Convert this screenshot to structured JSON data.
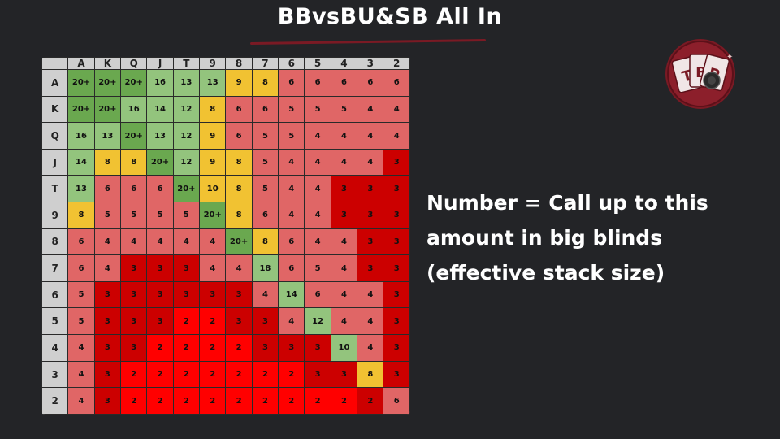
{
  "title": "BBvsBU&SB All In",
  "legend": {
    "line1": "Number = Call up to this",
    "line2": "amount in big blinds",
    "line3": "(effective stack size)"
  },
  "logo_text": "TBP",
  "colors": {
    "background": "#232427",
    "header": "#cfcfcf",
    "dark_green": "#6aa84f",
    "light_green": "#93c47d",
    "yellow": "#f1c232",
    "salmon": "#e06666",
    "dark_red": "#cc0000",
    "red": "#ff0000",
    "accent": "#7a1a24"
  },
  "chart_data": {
    "type": "table",
    "ranks": [
      "A",
      "K",
      "Q",
      "J",
      "T",
      "9",
      "8",
      "7",
      "6",
      "5",
      "4",
      "3",
      "2"
    ],
    "rows": [
      [
        "20+",
        "20+",
        "20+",
        "16",
        "13",
        "13",
        "9",
        "8",
        "6",
        "6",
        "6",
        "6",
        "6"
      ],
      [
        "20+",
        "20+",
        "16",
        "14",
        "12",
        "8",
        "6",
        "6",
        "5",
        "5",
        "5",
        "4",
        "4"
      ],
      [
        "16",
        "13",
        "20+",
        "13",
        "12",
        "9",
        "6",
        "5",
        "5",
        "4",
        "4",
        "4",
        "4"
      ],
      [
        "14",
        "8",
        "8",
        "20+",
        "12",
        "9",
        "8",
        "5",
        "4",
        "4",
        "4",
        "4",
        "3"
      ],
      [
        "13",
        "6",
        "6",
        "6",
        "20+",
        "10",
        "8",
        "5",
        "4",
        "4",
        "3",
        "3",
        "3"
      ],
      [
        "8",
        "5",
        "5",
        "5",
        "5",
        "20+",
        "8",
        "6",
        "4",
        "4",
        "3",
        "3",
        "3"
      ],
      [
        "6",
        "4",
        "4",
        "4",
        "4",
        "4",
        "20+",
        "8",
        "6",
        "4",
        "4",
        "3",
        "3"
      ],
      [
        "6",
        "4",
        "3",
        "3",
        "3",
        "4",
        "4",
        "18",
        "6",
        "5",
        "4",
        "3",
        "3"
      ],
      [
        "5",
        "3",
        "3",
        "3",
        "3",
        "3",
        "3",
        "4",
        "14",
        "6",
        "4",
        "4",
        "3"
      ],
      [
        "5",
        "3",
        "3",
        "3",
        "2",
        "2",
        "3",
        "3",
        "4",
        "12",
        "4",
        "4",
        "3"
      ],
      [
        "4",
        "3",
        "3",
        "2",
        "2",
        "2",
        "2",
        "3",
        "3",
        "3",
        "10",
        "4",
        "3"
      ],
      [
        "4",
        "3",
        "2",
        "2",
        "2",
        "2",
        "2",
        "2",
        "2",
        "3",
        "3",
        "8",
        "3"
      ],
      [
        "4",
        "3",
        "2",
        "2",
        "2",
        "2",
        "2",
        "2",
        "2",
        "2",
        "2",
        "2",
        "6"
      ]
    ],
    "cell_colors": [
      [
        "dg",
        "dg",
        "dg",
        "lg",
        "lg",
        "lg",
        "y",
        "y",
        "s",
        "s",
        "s",
        "s",
        "s"
      ],
      [
        "dg",
        "dg",
        "lg",
        "lg",
        "lg",
        "y",
        "s",
        "s",
        "s",
        "s",
        "s",
        "s",
        "s"
      ],
      [
        "lg",
        "lg",
        "dg",
        "lg",
        "lg",
        "y",
        "s",
        "s",
        "s",
        "s",
        "s",
        "s",
        "s"
      ],
      [
        "lg",
        "y",
        "y",
        "dg",
        "lg",
        "y",
        "y",
        "s",
        "s",
        "s",
        "s",
        "s",
        "dr"
      ],
      [
        "lg",
        "s",
        "s",
        "s",
        "dg",
        "y",
        "y",
        "s",
        "s",
        "s",
        "dr",
        "dr",
        "dr"
      ],
      [
        "y",
        "s",
        "s",
        "s",
        "s",
        "dg",
        "y",
        "s",
        "s",
        "s",
        "dr",
        "dr",
        "dr"
      ],
      [
        "s",
        "s",
        "s",
        "s",
        "s",
        "s",
        "dg",
        "y",
        "s",
        "s",
        "s",
        "dr",
        "dr"
      ],
      [
        "s",
        "s",
        "dr",
        "dr",
        "dr",
        "s",
        "s",
        "lg",
        "s",
        "s",
        "s",
        "dr",
        "dr"
      ],
      [
        "s",
        "dr",
        "dr",
        "dr",
        "dr",
        "dr",
        "dr",
        "s",
        "lg",
        "s",
        "s",
        "s",
        "dr"
      ],
      [
        "s",
        "dr",
        "dr",
        "dr",
        "r",
        "r",
        "dr",
        "dr",
        "s",
        "lg",
        "s",
        "s",
        "dr"
      ],
      [
        "s",
        "dr",
        "dr",
        "r",
        "r",
        "r",
        "r",
        "dr",
        "dr",
        "dr",
        "lg",
        "s",
        "dr"
      ],
      [
        "s",
        "dr",
        "r",
        "r",
        "r",
        "r",
        "r",
        "r",
        "r",
        "dr",
        "dr",
        "y",
        "dr"
      ],
      [
        "s",
        "dr",
        "r",
        "r",
        "r",
        "r",
        "r",
        "r",
        "r",
        "r",
        "r",
        "dr",
        "s"
      ]
    ]
  }
}
